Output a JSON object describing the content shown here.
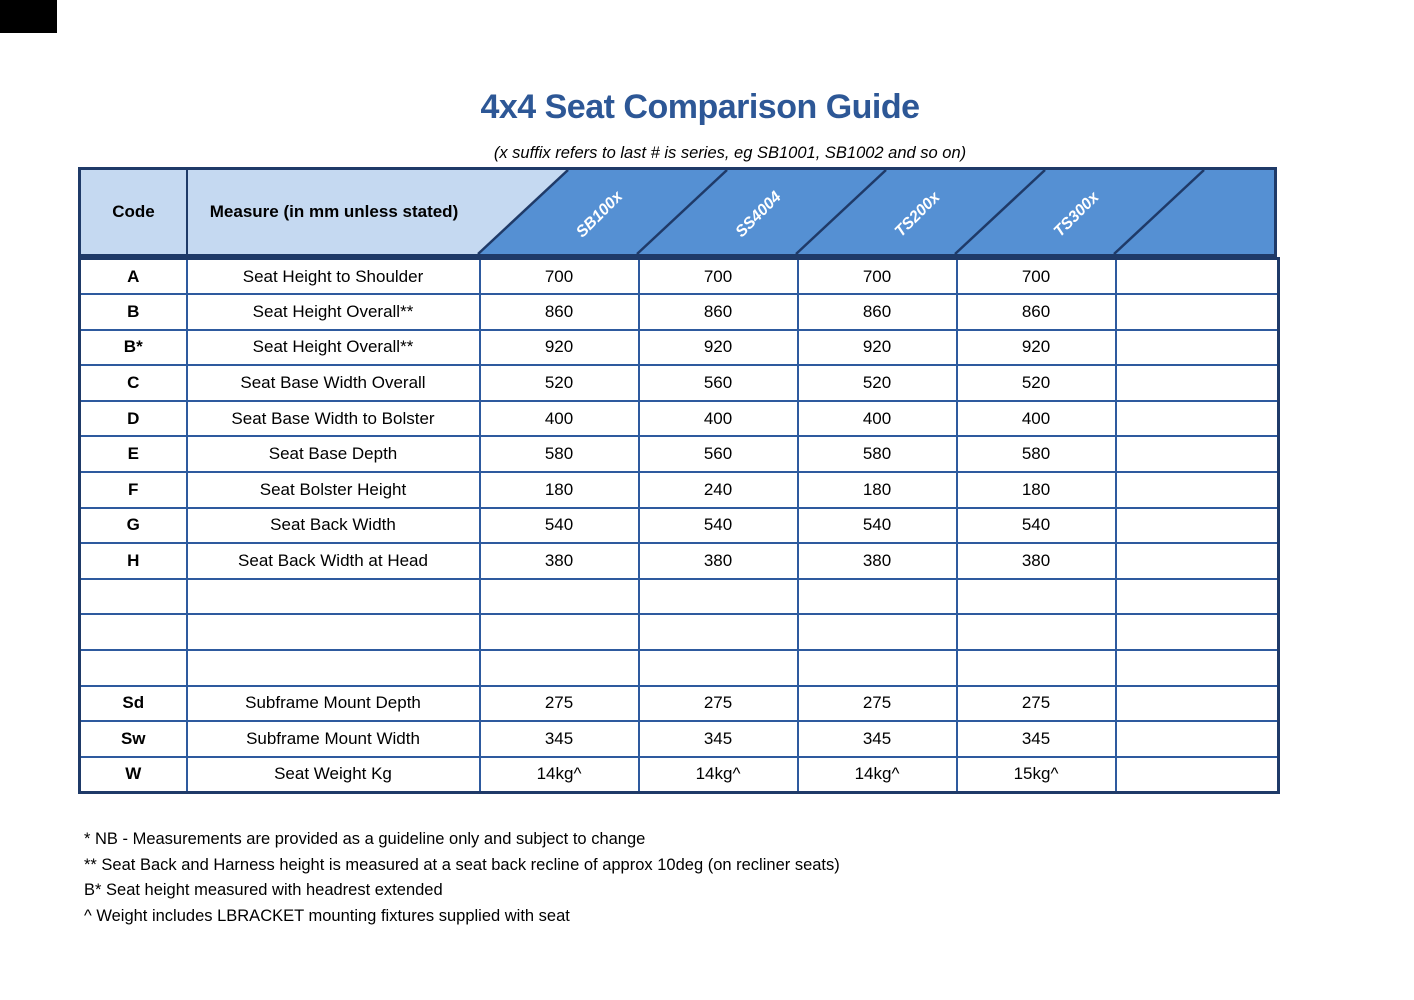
{
  "page": {
    "title": "4x4 Seat Comparison Guide",
    "subtitle": "(x suffix refers to last # is series, eg SB1001, SB1002 and so on)"
  },
  "colors": {
    "title_blue": "#2d5796",
    "header_light_blue": "#c5d9f1",
    "header_dark_blue": "#5590d3",
    "border_navy": "#1f3a68",
    "grid_blue": "#2e5a9e"
  },
  "table": {
    "header": {
      "code": "Code",
      "measure": "Measure (in mm unless stated)",
      "products": [
        "SB100x",
        "SS4004",
        "TS200x",
        "TS300x",
        ""
      ]
    },
    "rows": [
      {
        "code": "A",
        "measure": "Seat Height to Shoulder",
        "values": [
          "700",
          "700",
          "700",
          "700",
          ""
        ]
      },
      {
        "code": "B",
        "measure": "Seat Height Overall**",
        "values": [
          "860",
          "860",
          "860",
          "860",
          ""
        ]
      },
      {
        "code": "B*",
        "measure": "Seat Height Overall**",
        "values": [
          "920",
          "920",
          "920",
          "920",
          ""
        ]
      },
      {
        "code": "C",
        "measure": "Seat Base Width Overall",
        "values": [
          "520",
          "560",
          "520",
          "520",
          ""
        ]
      },
      {
        "code": "D",
        "measure": "Seat Base Width to Bolster",
        "values": [
          "400",
          "400",
          "400",
          "400",
          ""
        ]
      },
      {
        "code": "E",
        "measure": "Seat Base Depth",
        "values": [
          "580",
          "560",
          "580",
          "580",
          ""
        ]
      },
      {
        "code": "F",
        "measure": "Seat Bolster Height",
        "values": [
          "180",
          "240",
          "180",
          "180",
          ""
        ]
      },
      {
        "code": "G",
        "measure": "Seat Back Width",
        "values": [
          "540",
          "540",
          "540",
          "540",
          ""
        ]
      },
      {
        "code": "H",
        "measure": "Seat Back Width at Head",
        "values": [
          "380",
          "380",
          "380",
          "380",
          ""
        ]
      },
      {
        "code": "",
        "measure": "",
        "values": [
          "",
          "",
          "",
          "",
          ""
        ]
      },
      {
        "code": "",
        "measure": "",
        "values": [
          "",
          "",
          "",
          "",
          ""
        ]
      },
      {
        "code": "",
        "measure": "",
        "values": [
          "",
          "",
          "",
          "",
          ""
        ]
      },
      {
        "code": "Sd",
        "measure": "Subframe Mount Depth",
        "values": [
          "275",
          "275",
          "275",
          "275",
          ""
        ]
      },
      {
        "code": "Sw",
        "measure": "Subframe Mount Width",
        "values": [
          "345",
          "345",
          "345",
          "345",
          ""
        ]
      },
      {
        "code": "W",
        "measure": "Seat Weight Kg",
        "values": [
          "14kg^",
          "14kg^",
          "14kg^",
          "15kg^",
          ""
        ]
      }
    ]
  },
  "footnotes": [
    "* NB - Measurements are provided as a guideline only and subject to change",
    "** Seat Back and Harness height is measured at a seat back recline of approx 10deg (on recliner seats)",
    "B* Seat height measured with headrest extended",
    "^ Weight includes LBRACKET mounting fixtures supplied with seat"
  ]
}
